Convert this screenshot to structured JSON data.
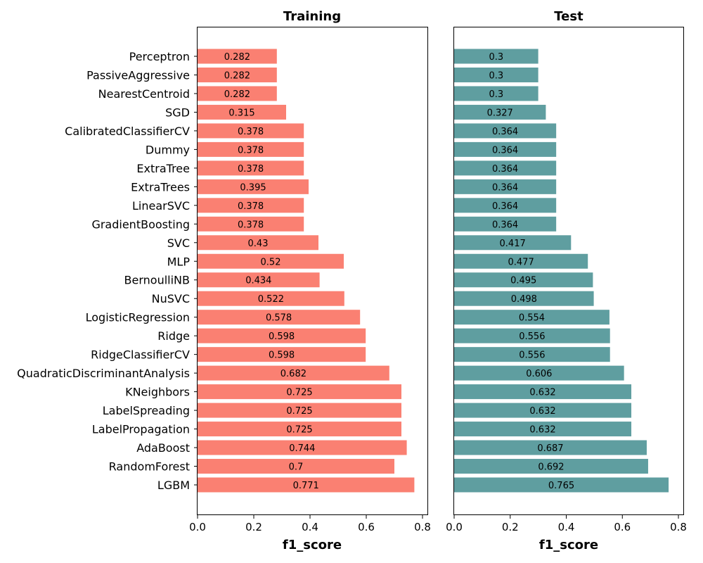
{
  "chart_data": [
    {
      "type": "bar",
      "orientation": "horizontal",
      "title": "Training",
      "xlabel": "f1_score",
      "xlim": [
        0,
        0.82
      ],
      "xticks": [
        "0.0",
        "0.2",
        "0.4",
        "0.6",
        "0.8"
      ],
      "color": "#fa8072",
      "categories": [
        "Perceptron",
        "PassiveAggressive",
        "NearestCentroid",
        "SGD",
        "CalibratedClassifierCV",
        "Dummy",
        "ExtraTree",
        "ExtraTrees",
        "LinearSVC",
        "GradientBoosting",
        "SVC",
        "MLP",
        "BernoulliNB",
        "NuSVC",
        "LogisticRegression",
        "Ridge",
        "RidgeClassifierCV",
        "QuadraticDiscriminantAnalysis",
        "KNeighbors",
        "LabelSpreading",
        "LabelPropagation",
        "AdaBoost",
        "RandomForest",
        "LGBM"
      ],
      "values": [
        0.282,
        0.282,
        0.282,
        0.315,
        0.378,
        0.378,
        0.378,
        0.395,
        0.378,
        0.378,
        0.43,
        0.52,
        0.434,
        0.522,
        0.578,
        0.598,
        0.598,
        0.682,
        0.725,
        0.725,
        0.725,
        0.744,
        0.7,
        0.771
      ],
      "labels": [
        "0.282",
        "0.282",
        "0.282",
        "0.315",
        "0.378",
        "0.378",
        "0.378",
        "0.395",
        "0.378",
        "0.378",
        "0.43",
        "0.52",
        "0.434",
        "0.522",
        "0.578",
        "0.598",
        "0.598",
        "0.682",
        "0.725",
        "0.725",
        "0.725",
        "0.744",
        "0.7",
        "0.771"
      ]
    },
    {
      "type": "bar",
      "orientation": "horizontal",
      "title": "Test",
      "xlabel": "f1_score",
      "xlim": [
        0,
        0.82
      ],
      "xticks": [
        "0.0",
        "0.2",
        "0.4",
        "0.6",
        "0.8"
      ],
      "color": "#5f9ea0",
      "categories": [
        "Perceptron",
        "PassiveAggressive",
        "NearestCentroid",
        "SGD",
        "CalibratedClassifierCV",
        "Dummy",
        "ExtraTree",
        "ExtraTrees",
        "LinearSVC",
        "GradientBoosting",
        "SVC",
        "MLP",
        "BernoulliNB",
        "NuSVC",
        "LogisticRegression",
        "Ridge",
        "RidgeClassifierCV",
        "QuadraticDiscriminantAnalysis",
        "KNeighbors",
        "LabelSpreading",
        "LabelPropagation",
        "AdaBoost",
        "RandomForest",
        "LGBM"
      ],
      "values": [
        0.3,
        0.3,
        0.3,
        0.327,
        0.364,
        0.364,
        0.364,
        0.364,
        0.364,
        0.364,
        0.417,
        0.477,
        0.495,
        0.498,
        0.554,
        0.556,
        0.556,
        0.606,
        0.632,
        0.632,
        0.632,
        0.687,
        0.692,
        0.765
      ],
      "labels": [
        "0.3",
        "0.3",
        "0.3",
        "0.327",
        "0.364",
        "0.364",
        "0.364",
        "0.364",
        "0.364",
        "0.364",
        "0.417",
        "0.477",
        "0.495",
        "0.498",
        "0.554",
        "0.556",
        "0.556",
        "0.606",
        "0.632",
        "0.632",
        "0.632",
        "0.687",
        "0.692",
        "0.765"
      ]
    }
  ]
}
